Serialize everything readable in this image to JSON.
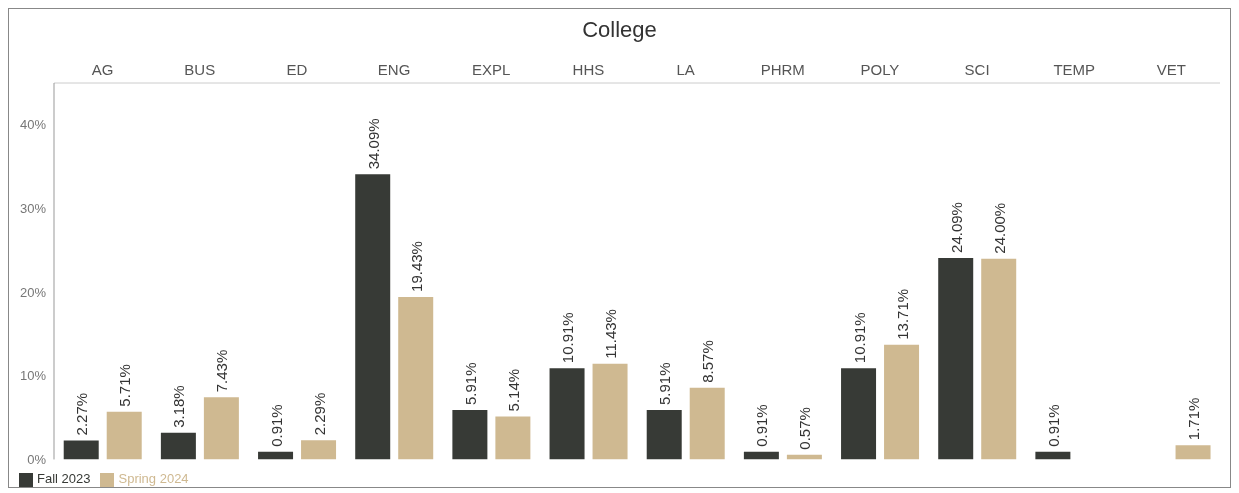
{
  "chart_data": {
    "type": "bar",
    "title": "College",
    "categories": [
      "AG",
      "BUS",
      "ED",
      "ENG",
      "EXPL",
      "HHS",
      "LA",
      "PHRM",
      "POLY",
      "SCI",
      "TEMP",
      "VET"
    ],
    "series": [
      {
        "name": "Fall 2023",
        "color": "#373a36",
        "values": [
          2.27,
          3.18,
          0.91,
          34.09,
          5.91,
          10.91,
          5.91,
          0.91,
          10.91,
          24.09,
          0.91,
          null
        ],
        "value_labels": [
          "2.27%",
          "3.18%",
          "0.91%",
          "34.09%",
          "5.91%",
          "10.91%",
          "5.91%",
          "0.91%",
          "10.91%",
          "24.09%",
          "0.91%",
          null
        ]
      },
      {
        "name": "Spring 2024",
        "color": "#cfb991",
        "values": [
          5.71,
          7.43,
          2.29,
          19.43,
          5.14,
          11.43,
          8.57,
          0.57,
          13.71,
          24.0,
          null,
          1.71
        ],
        "value_labels": [
          "5.71%",
          "7.43%",
          "2.29%",
          "19.43%",
          "5.14%",
          "11.43%",
          "8.57%",
          "0.57%",
          "13.71%",
          "24.00%",
          null,
          "1.71%"
        ]
      }
    ],
    "ylim": [
      0,
      45
    ],
    "yticks": [
      {
        "value": 0,
        "label": "0%"
      },
      {
        "value": 10,
        "label": "10%"
      },
      {
        "value": 20,
        "label": "20%"
      },
      {
        "value": 30,
        "label": "30%"
      },
      {
        "value": 40,
        "label": "40%"
      }
    ],
    "legend": "bottom left"
  }
}
